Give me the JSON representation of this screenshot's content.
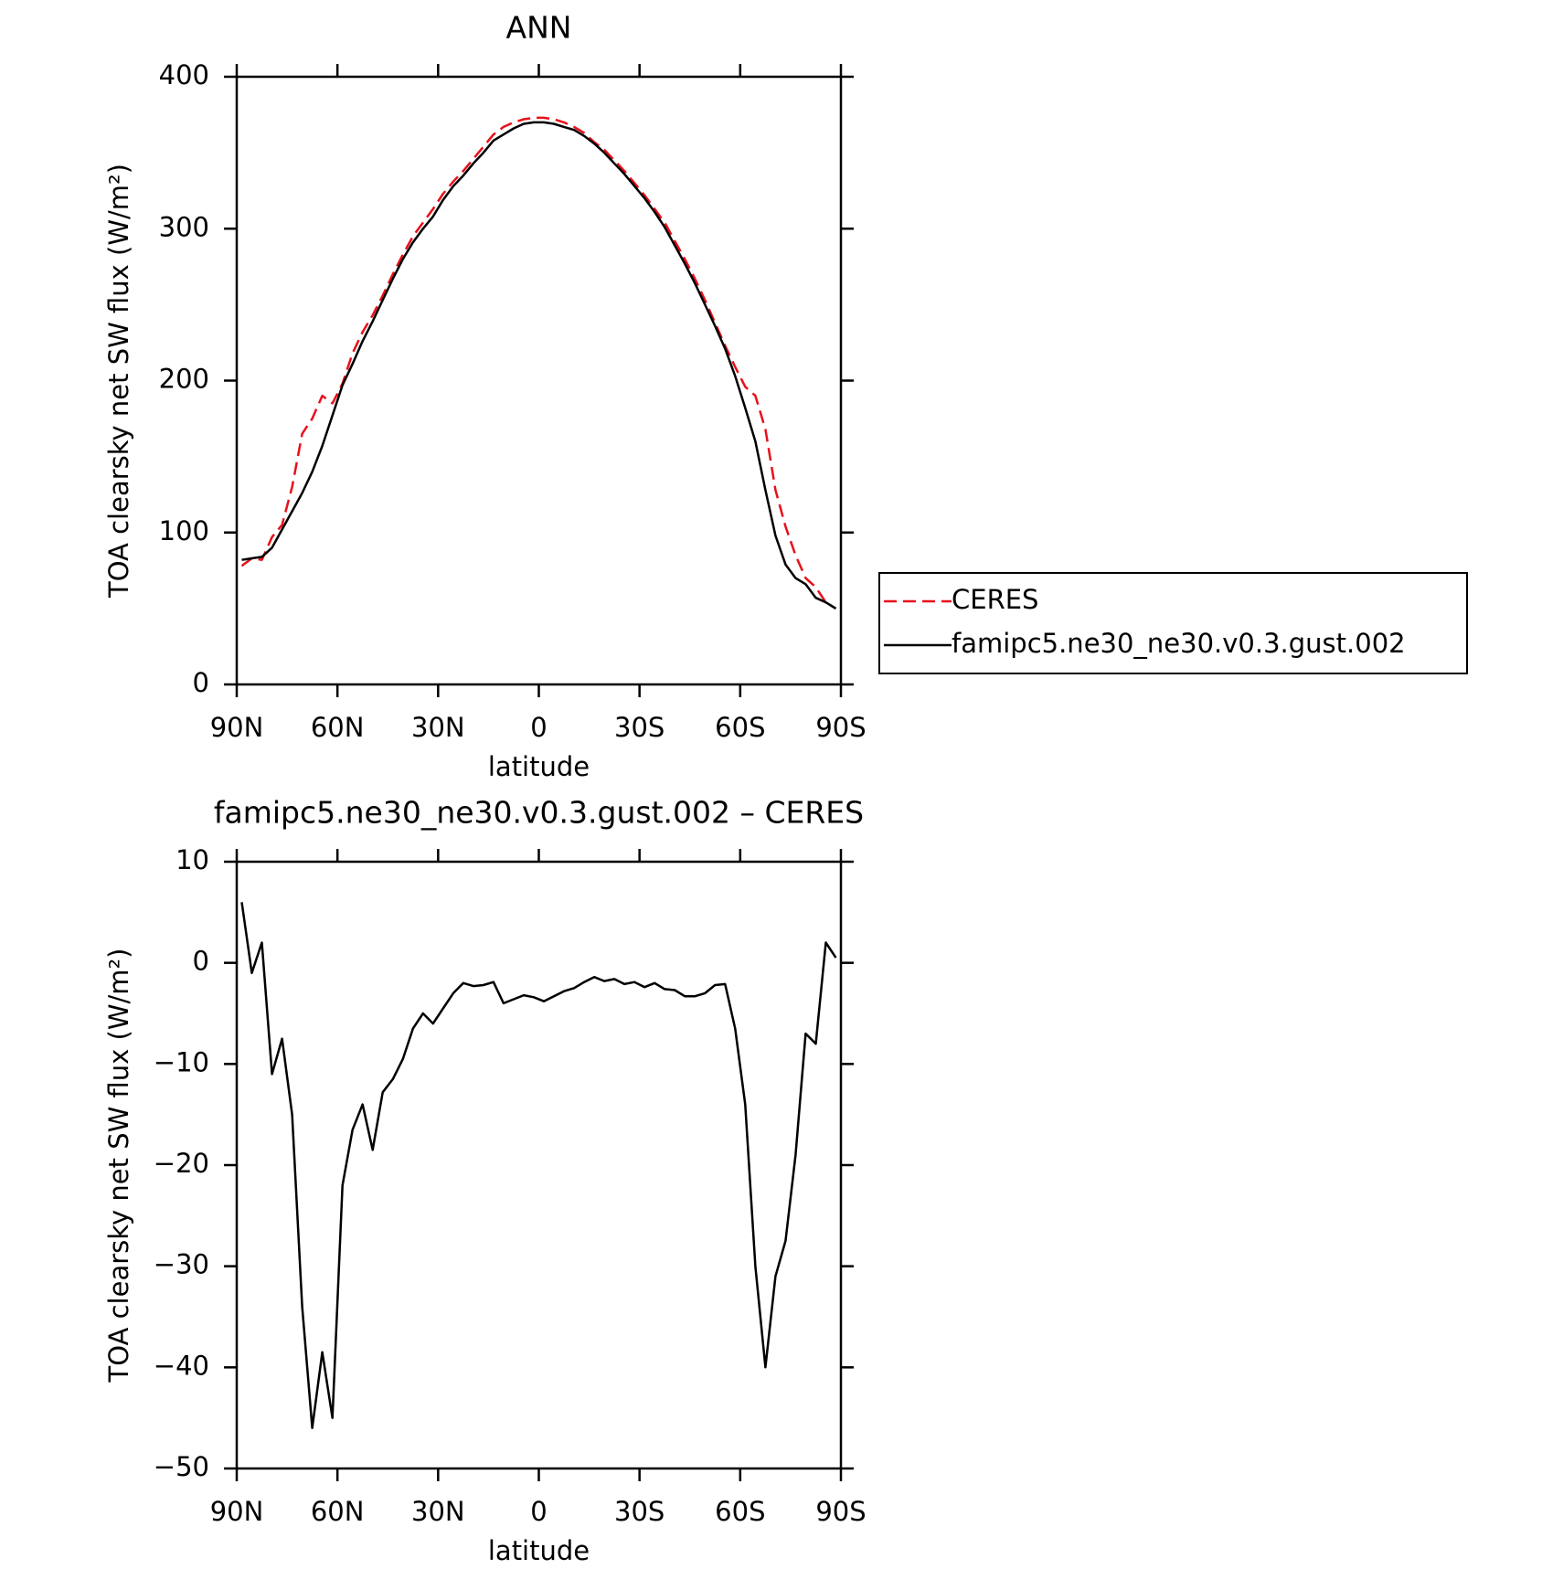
{
  "chart_data": [
    {
      "type": "line",
      "title": "ANN",
      "xlabel": "latitude",
      "ylabel": "TOA clearsky net SW flux (W/m²)",
      "x": [
        88.5,
        85.5,
        82.5,
        79.5,
        76.5,
        73.5,
        70.5,
        67.5,
        64.5,
        61.5,
        58.5,
        55.5,
        52.5,
        49.5,
        46.5,
        43.5,
        40.5,
        37.5,
        34.5,
        31.5,
        28.5,
        25.5,
        22.5,
        19.5,
        16.5,
        13.5,
        10.5,
        7.5,
        4.5,
        1.5,
        -1.5,
        -4.5,
        -7.5,
        -10.5,
        -13.5,
        -16.5,
        -19.5,
        -22.5,
        -25.5,
        -28.5,
        -31.5,
        -34.5,
        -37.5,
        -40.5,
        -43.5,
        -46.5,
        -49.5,
        -52.5,
        -55.5,
        -58.5,
        -61.5,
        -64.5,
        -67.5,
        -70.5,
        -73.5,
        -76.5,
        -79.5,
        -82.5,
        -85.5,
        -88.5
      ],
      "series": [
        {
          "name": "CERES",
          "color": "#e8101a",
          "line_style": "dashed",
          "values": [
            78,
            83,
            82,
            97,
            105,
            130,
            165,
            175,
            190,
            185,
            198,
            218,
            232,
            243,
            256,
            270,
            283,
            295,
            304,
            313,
            323,
            331,
            338,
            346,
            354,
            362,
            367,
            370,
            372,
            373,
            373,
            372,
            370,
            367,
            363,
            357,
            352,
            345,
            338,
            330,
            322,
            313,
            304,
            292,
            280,
            267,
            253,
            238,
            223,
            209,
            196,
            190,
            168,
            128,
            104,
            85,
            70,
            64,
            54,
            50
          ]
        },
        {
          "name": "famipc5.ne30_ne30.v0.3.gust.002",
          "color": "#000000",
          "line_style": "solid",
          "values": [
            82,
            83,
            84,
            90,
            102,
            114,
            126,
            140,
            157,
            177,
            197,
            211,
            226,
            239,
            253,
            267,
            280,
            291,
            300,
            308,
            319,
            328,
            335,
            343,
            350,
            358,
            362,
            366,
            369,
            370,
            370,
            369,
            367,
            365,
            361,
            356,
            350,
            343,
            336,
            328,
            320,
            311,
            301,
            289,
            277,
            264,
            250,
            236,
            221,
            203,
            182,
            160,
            128,
            98,
            79,
            70,
            66,
            57,
            54,
            50
          ]
        }
      ],
      "xlim": [
        90,
        -90
      ],
      "xticks": [
        {
          "value": 90,
          "label": "90N"
        },
        {
          "value": 60,
          "label": "60N"
        },
        {
          "value": 30,
          "label": "30N"
        },
        0,
        {
          "value": -30,
          "label": "30S"
        },
        {
          "value": -60,
          "label": "60S"
        },
        {
          "value": -90,
          "label": "90S"
        }
      ],
      "ylim": [
        0,
        400
      ],
      "yticks": [
        0,
        100,
        200,
        300,
        400
      ],
      "legend": "outside right"
    },
    {
      "type": "line",
      "title": "famipc5.ne30_ne30.v0.3.gust.002 – CERES",
      "xlabel": "latitude",
      "ylabel": "TOA clearsky net SW flux (W/m²)",
      "x": [
        88.5,
        85.5,
        82.5,
        79.5,
        76.5,
        73.5,
        70.5,
        67.5,
        64.5,
        61.5,
        58.5,
        55.5,
        52.5,
        49.5,
        46.5,
        43.5,
        40.5,
        37.5,
        34.5,
        31.5,
        28.5,
        25.5,
        22.5,
        19.5,
        16.5,
        13.5,
        10.5,
        7.5,
        4.5,
        1.5,
        -1.5,
        -4.5,
        -7.5,
        -10.5,
        -13.5,
        -16.5,
        -19.5,
        -22.5,
        -25.5,
        -28.5,
        -31.5,
        -34.5,
        -37.5,
        -40.5,
        -43.5,
        -46.5,
        -49.5,
        -52.5,
        -55.5,
        -58.5,
        -61.5,
        -64.5,
        -67.5,
        -70.5,
        -73.5,
        -76.5,
        -79.5,
        -82.5,
        -85.5,
        -88.5
      ],
      "series": [
        {
          "color": "#000000",
          "line_style": "solid",
          "values": [
            6,
            -1,
            2,
            -11,
            -7.5,
            -15,
            -34,
            -46,
            -38.5,
            -45,
            -22,
            -16.5,
            -14,
            -18.5,
            -12.8,
            -11.5,
            -9.5,
            -6.5,
            -5,
            -6,
            -4.5,
            -3,
            -2,
            -2.3,
            -2.2,
            -1.9,
            -4,
            -3.6,
            -3.2,
            -3.4,
            -3.8,
            -3.3,
            -2.8,
            -2.5,
            -1.9,
            -1.4,
            -1.8,
            -1.6,
            -2.1,
            -1.9,
            -2.4,
            -2,
            -2.6,
            -2.7,
            -3.3,
            -3.3,
            -3,
            -2.2,
            -2.1,
            -6.5,
            -14,
            -30,
            -40,
            -31,
            -27.5,
            -19,
            -7,
            -8,
            2,
            0.5
          ]
        }
      ],
      "xlim": [
        90,
        -90
      ],
      "xticks": [
        {
          "value": 90,
          "label": "90N"
        },
        {
          "value": 60,
          "label": "60N"
        },
        {
          "value": 30,
          "label": "30N"
        },
        0,
        {
          "value": -30,
          "label": "30S"
        },
        {
          "value": -60,
          "label": "60S"
        },
        {
          "value": -90,
          "label": "90S"
        }
      ],
      "ylim": [
        -50,
        10
      ],
      "yticks": [
        {
          "value": -50,
          "label": "−50"
        },
        {
          "value": -40,
          "label": "−40"
        },
        {
          "value": -30,
          "label": "−30"
        },
        {
          "value": -20,
          "label": "−20"
        },
        {
          "value": -10,
          "label": "−10"
        },
        0,
        10
      ]
    }
  ]
}
